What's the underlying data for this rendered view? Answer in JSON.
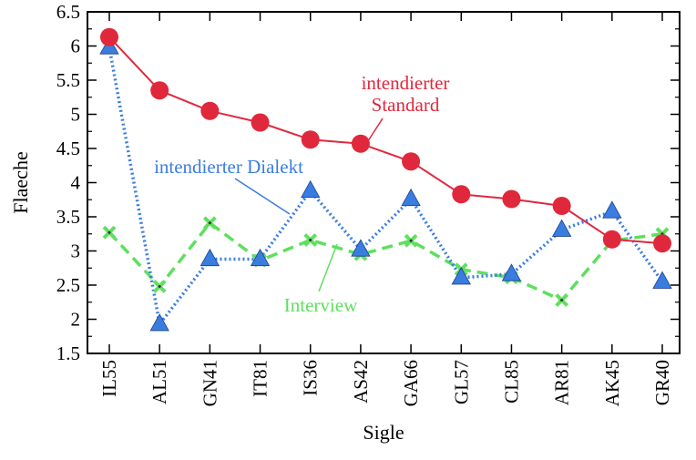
{
  "chart_data": {
    "type": "line",
    "xlabel": "Sigle",
    "ylabel": "Flaeche",
    "ylim": [
      1.5,
      6.5
    ],
    "y_ticks": [
      "1.5",
      "2",
      "2.5",
      "3",
      "3.5",
      "4",
      "4.5",
      "5",
      "5.5",
      "6",
      "6.5"
    ],
    "categories": [
      "IL55",
      "AL51",
      "GN41",
      "IT81",
      "IS36",
      "AS42",
      "GA66",
      "GL57",
      "CL85",
      "AR81",
      "AK45",
      "GR40"
    ],
    "grid": false,
    "legend": "none",
    "series": [
      {
        "name": "intendierter Standard",
        "color": "#e0283c",
        "line_style": "solid",
        "marker": "circle",
        "values": [
          6.13,
          5.35,
          5.05,
          4.88,
          4.63,
          4.57,
          4.31,
          3.83,
          3.76,
          3.66,
          3.17,
          3.11
        ]
      },
      {
        "name": "intendierter Dialekt",
        "color": "#3a7de0",
        "line_style": "dotted",
        "marker": "triangle",
        "values": [
          5.98,
          1.93,
          2.88,
          2.88,
          3.88,
          3.02,
          3.76,
          2.61,
          2.66,
          3.31,
          3.58,
          2.55
        ]
      },
      {
        "name": "Interview",
        "color": "#5ee05e",
        "line_style": "dashed",
        "marker": "x",
        "values": [
          3.27,
          2.48,
          3.41,
          2.86,
          3.16,
          2.95,
          3.15,
          2.73,
          2.61,
          2.28,
          3.15,
          3.25
        ]
      }
    ],
    "annotations": [
      {
        "id": "standard",
        "lines": [
          "intendierter",
          "Standard"
        ],
        "color": "#e0283c"
      },
      {
        "id": "dialekt",
        "lines": [
          "intendierter Dialekt"
        ],
        "color": "#3a7de0"
      },
      {
        "id": "interview",
        "lines": [
          "Interview"
        ],
        "color": "#5ee05e"
      }
    ]
  }
}
